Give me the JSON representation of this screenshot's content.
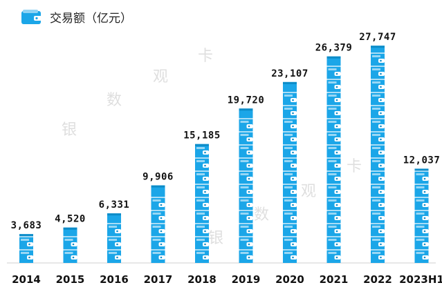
{
  "chart_data": {
    "type": "bar",
    "title": "交易额（亿元）",
    "categories": [
      "2014",
      "2015",
      "2016",
      "2017",
      "2018",
      "2019",
      "2020",
      "2021",
      "2022",
      "2023H1"
    ],
    "values": [
      3683,
      4520,
      6331,
      9906,
      15185,
      19720,
      23107,
      26379,
      27747,
      12037
    ],
    "value_labels": [
      "3,683",
      "4,520",
      "6,331",
      "9,906",
      "15,185",
      "19,720",
      "23,107",
      "26,379",
      "27,747",
      "12,037"
    ],
    "xlabel": "",
    "ylabel": "",
    "ylim": [
      0,
      30000
    ],
    "grid": false,
    "legend": "none",
    "mark_style": "stacked wallet pictograph",
    "colors": {
      "bar": "#1ba6e8",
      "bar_dark": "#0d8cc8",
      "text": "#111111"
    }
  },
  "watermarks": [
    "银",
    "数",
    "观",
    "卡"
  ]
}
